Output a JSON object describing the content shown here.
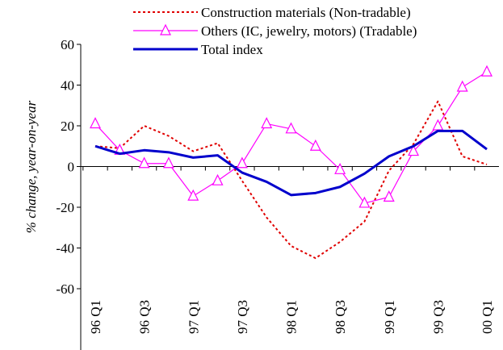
{
  "chart_data": {
    "type": "line",
    "y_label": "% change, year-on-year",
    "categories": [
      "96 Q1",
      null,
      "96 Q3",
      null,
      "97 Q1",
      null,
      "97 Q3",
      null,
      "98 Q1",
      null,
      "98 Q3",
      null,
      "99 Q1",
      null,
      "99 Q3",
      null,
      "00 Q1"
    ],
    "series": [
      {
        "name": "Construction materials (Non-tradable)",
        "color": "#e00000",
        "style": "dotted",
        "values": [
          10,
          9,
          20,
          15,
          7.5,
          11.5,
          -7,
          -25,
          -39,
          -45,
          -37,
          -27,
          -2,
          11,
          32,
          5,
          1
        ]
      },
      {
        "name": "Others (IC, jewelry, motors) (Tradable)",
        "color": "#ff00ff",
        "style": "triangle",
        "values": [
          21,
          8,
          1.5,
          1.5,
          -14.5,
          -7,
          1.5,
          21,
          18.5,
          10,
          -1.5,
          -18,
          -15,
          7.5,
          20,
          39,
          46.5
        ]
      },
      {
        "name": "Total index",
        "color": "#0000cc",
        "style": "solid",
        "values": [
          10,
          6.3,
          8,
          7,
          4.4,
          5.5,
          -3,
          -7.5,
          -14,
          -13,
          -10,
          -3.5,
          5,
          10,
          17.5,
          17.5,
          8.5
        ]
      }
    ],
    "ylim": [
      -60,
      60
    ],
    "yticks": [
      -60,
      -40,
      -20,
      0,
      20,
      40,
      60
    ]
  }
}
